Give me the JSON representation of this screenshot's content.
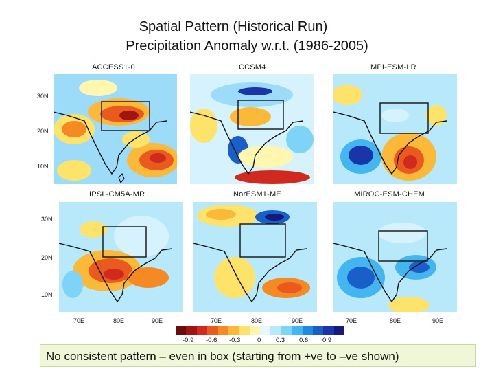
{
  "title": {
    "line1": "Spatial Pattern (Historical Run)",
    "line2": "Precipitation Anomaly w.r.t. (1986-2005)"
  },
  "panels": [
    {
      "model": "ACCESS1-0"
    },
    {
      "model": "CCSM4"
    },
    {
      "model": "MPI-ESM-LR"
    },
    {
      "model": "IPSL-CM5A-MR"
    },
    {
      "model": "NorESM1-ME"
    },
    {
      "model": "MIROC-ESM-CHEM"
    }
  ],
  "axes": {
    "lat_ticks": [
      "30N",
      "20N",
      "10N"
    ],
    "lon_ticks": [
      "70E",
      "80E",
      "90E"
    ]
  },
  "colorbar": {
    "ticks": [
      "-0.9",
      "-0.6",
      "-0.3",
      "0",
      "0.3",
      "0.6",
      "0.9"
    ],
    "colors": [
      "#6a0d0d",
      "#a11414",
      "#cf2a1d",
      "#ea5a1f",
      "#f58a24",
      "#fbb93a",
      "#fde36a",
      "#fff7b0",
      "#e6f7ff",
      "#b7e9fb",
      "#7ed4f6",
      "#44b6ef",
      "#1f8be0",
      "#1a5ec9",
      "#1a35a8",
      "#141a7a"
    ]
  },
  "caption": "No consistent  pattern – even in box (starting from +ve to –ve  shown)"
}
